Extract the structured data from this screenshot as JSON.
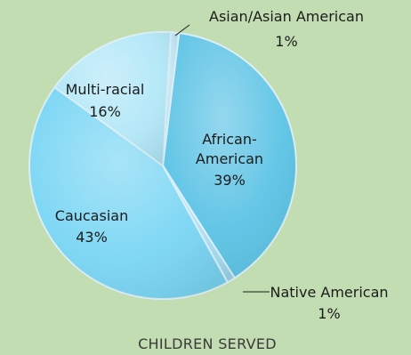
{
  "chart_data": {
    "type": "pie",
    "title": "CHILDREN SERVED",
    "slices": [
      {
        "label": "Asian/Asian American",
        "value": 1,
        "pct_label": "1%",
        "color": "#b7dded"
      },
      {
        "label": "African-American",
        "value": 39,
        "pct_label": "39%",
        "color": "#5cc3e5"
      },
      {
        "label": "Native American",
        "value": 1,
        "pct_label": "1%",
        "color": "#9fd8ee"
      },
      {
        "label": "Caucasian",
        "value": 43,
        "pct_label": "43%",
        "color": "#7ad6f4"
      },
      {
        "label": "Multi-racial",
        "value": 16,
        "pct_label": "16%",
        "color": "#b2e7f7"
      }
    ]
  },
  "colors": {
    "background": "#c3ddb3",
    "slice_border": "#d8eef6"
  }
}
